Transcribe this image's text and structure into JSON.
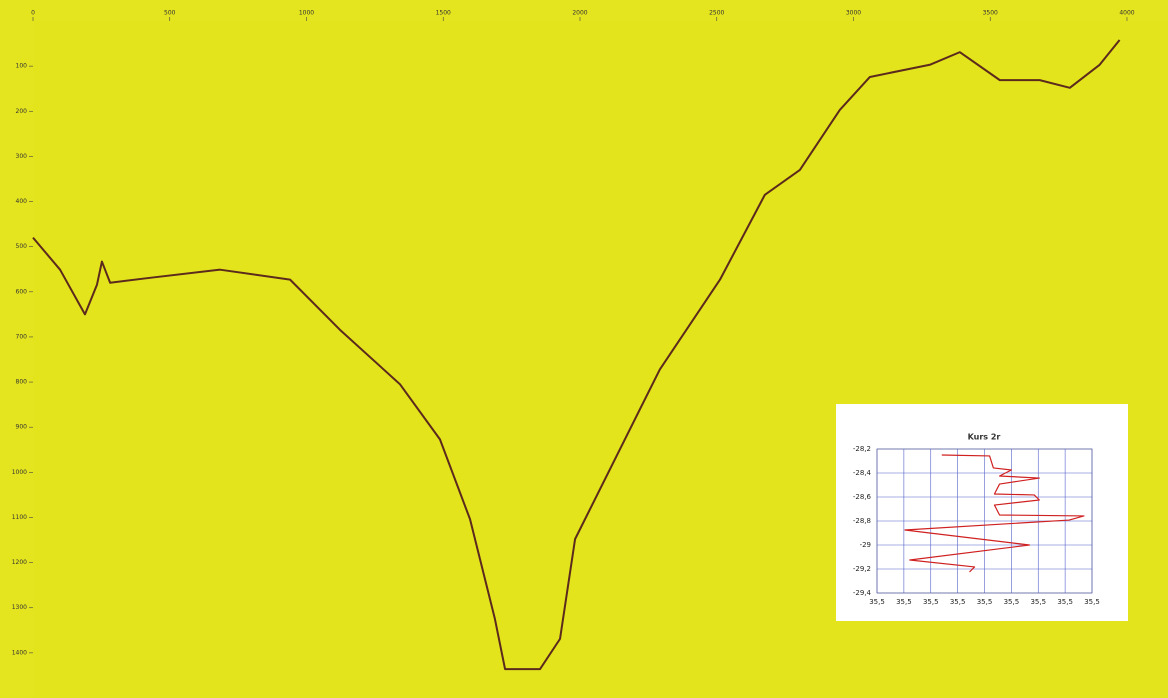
{
  "chart_data": [
    {
      "type": "line",
      "x": [
        0,
        99,
        190,
        234,
        252,
        282,
        428,
        684,
        940,
        1122,
        1342,
        1488,
        1598,
        1689,
        1726,
        1854,
        1927,
        1982,
        2146,
        2292,
        2512,
        2676,
        2804,
        2950,
        3060,
        3279,
        3389,
        3535,
        3681,
        3791,
        3900,
        3973
      ],
      "values": [
        480,
        551,
        650,
        584,
        533,
        580,
        569,
        551,
        573,
        684,
        805,
        927,
        1104,
        1325,
        1436,
        1436,
        1369,
        1148,
        949,
        772,
        573,
        385,
        330,
        197,
        124,
        97,
        69,
        131,
        131,
        148,
        97,
        42
      ],
      "color": "#5b2a1c",
      "xlim": [
        0,
        4150
      ],
      "xticks": [
        0,
        500,
        1000,
        1500,
        2000,
        2500,
        3000,
        3500,
        4000
      ],
      "ylim": [
        1500,
        0
      ],
      "yticks": [
        100,
        200,
        300,
        400,
        500,
        600,
        700,
        800,
        900,
        1000,
        1100,
        1200,
        1300,
        1400
      ]
    },
    {
      "type": "line",
      "title": "Kurs 2r",
      "x": [
        35.4841,
        35.5019,
        35.5033,
        35.51,
        35.5056,
        35.5204,
        35.5056,
        35.5037,
        35.5185,
        35.5204,
        35.5037,
        35.5056,
        35.537,
        35.5315,
        35.4704,
        35.4796,
        35.5167,
        35.4722,
        35.4963,
        35.4944
      ],
      "values": [
        -28.25,
        -28.258,
        -28.358,
        -28.375,
        -28.425,
        -28.442,
        -28.492,
        -28.575,
        -28.583,
        -28.625,
        -28.667,
        -28.75,
        -28.758,
        -28.792,
        -28.875,
        -28.9,
        -29.0,
        -29.125,
        -29.183,
        -29.225
      ],
      "color": "#d02020",
      "grid": true,
      "xlim": [
        35.46,
        35.54
      ],
      "xticks": [
        {
          "value": 35.46,
          "label": "35,5"
        },
        {
          "value": 35.47,
          "label": "35,5"
        },
        {
          "value": 35.48,
          "label": "35,5"
        },
        {
          "value": 35.49,
          "label": "35,5"
        },
        {
          "value": 35.5,
          "label": "35,5"
        },
        {
          "value": 35.51,
          "label": "35,5"
        },
        {
          "value": 35.52,
          "label": "35,5"
        },
        {
          "value": 35.53,
          "label": "35,5"
        },
        {
          "value": 35.54,
          "label": "35,5"
        }
      ],
      "ylim": [
        -29.4,
        -28.2
      ],
      "yticks": [
        {
          "value": -28.2,
          "label": "-28,2"
        },
        {
          "value": -28.4,
          "label": "-28,4"
        },
        {
          "value": -28.6,
          "label": "-28,6"
        },
        {
          "value": -28.8,
          "label": "-28,8"
        },
        {
          "value": -29,
          "label": "-29"
        },
        {
          "value": -29.2,
          "label": "-29,2"
        },
        {
          "value": -29.4,
          "label": "-29,4"
        }
      ]
    }
  ]
}
